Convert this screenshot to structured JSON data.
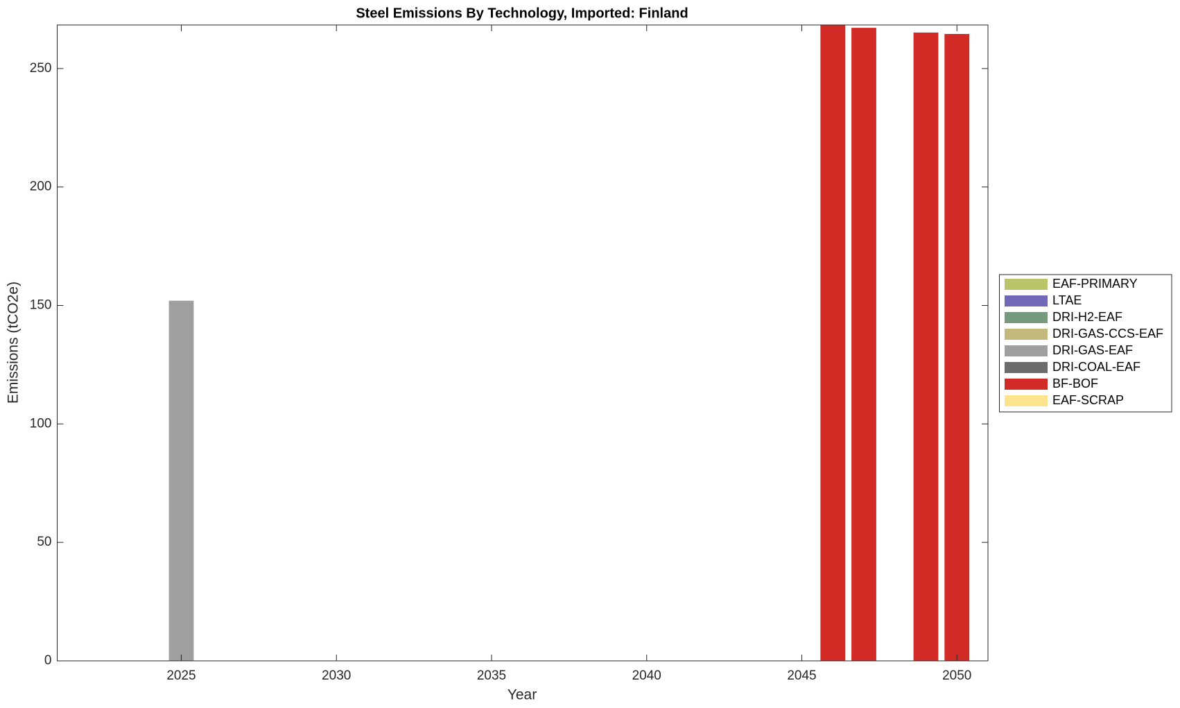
{
  "chart_data": {
    "type": "bar",
    "stacked": true,
    "title": "Steel Emissions By Technology, Imported: Finland",
    "x_label": "Year",
    "y_label": "Emissions (tCO2e)",
    "x": [
      2025,
      2046,
      2047,
      2049,
      2050
    ],
    "xlim": [
      2021,
      2051
    ],
    "xticks": [
      2025,
      2030,
      2035,
      2040,
      2045,
      2050
    ],
    "ylim": [
      0,
      268.4
    ],
    "yticks": [
      0,
      50,
      100,
      150,
      200,
      250
    ],
    "bar_width": 0.8,
    "legend": "outside-right",
    "series": [
      {
        "name": "EAF-PRIMARY",
        "color": "#b9c46b",
        "values": [
          0,
          0,
          0,
          0,
          0
        ]
      },
      {
        "name": "LTAE",
        "color": "#7268b8",
        "values": [
          0,
          0,
          0,
          0,
          0
        ]
      },
      {
        "name": "DRI-H2-EAF",
        "color": "#759a7e",
        "values": [
          0,
          0,
          0,
          0,
          0
        ]
      },
      {
        "name": "DRI-GAS-CCS-EAF",
        "color": "#c4b97c",
        "values": [
          0,
          0,
          0,
          0,
          0
        ]
      },
      {
        "name": "DRI-GAS-EAF",
        "color": "#9f9f9f",
        "values": [
          152,
          0,
          0,
          0,
          0
        ]
      },
      {
        "name": "DRI-COAL-EAF",
        "color": "#6b6b6b",
        "values": [
          0,
          0,
          0,
          0,
          0
        ]
      },
      {
        "name": "BF-BOF",
        "color": "#d22b26",
        "values": [
          0,
          268.4,
          267.2,
          265.2,
          264.6
        ]
      },
      {
        "name": "EAF-SCRAP",
        "color": "#fce38e",
        "values": [
          0,
          0,
          0,
          0,
          0
        ]
      }
    ]
  }
}
